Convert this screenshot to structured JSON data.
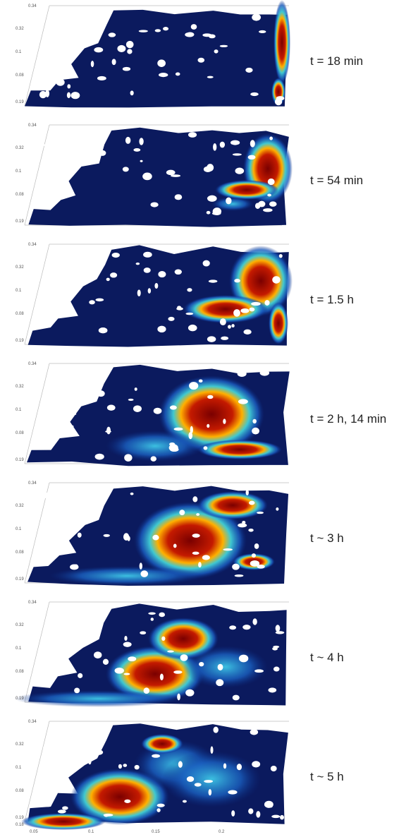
{
  "panels": [
    {
      "label": "t = 18 min",
      "ticks": [
        "0.34",
        "0.32",
        "0.1",
        "0.08",
        "0.19"
      ]
    },
    {
      "label": "t = 54 min",
      "ticks": [
        "0.34",
        "0.32",
        "0.1",
        "0.08",
        "0.19"
      ]
    },
    {
      "label": "t = 1.5 h",
      "ticks": [
        "0.34",
        "0.32",
        "0.1",
        "0.08",
        "0.19"
      ]
    },
    {
      "label": "t = 2 h, 14 min",
      "ticks": [
        "0.34",
        "0.32",
        "0.1",
        "0.08",
        "0.19"
      ]
    },
    {
      "label": "t ~ 3 h",
      "ticks": [
        "0.34",
        "0.32",
        "0.1",
        "0.08",
        "0.19"
      ]
    },
    {
      "label": "t ~ 4 h",
      "ticks": [
        "0.34",
        "0.32",
        "0.1",
        "0.08",
        "0.19"
      ]
    },
    {
      "label": "t ~ 5 h",
      "ticks": [
        "0.34",
        "0.32",
        "0.1",
        "0.08",
        "0.19",
        "0.18"
      ]
    }
  ],
  "x_axis": {
    "ticks": [
      "0.05",
      "0.1",
      "0.15",
      "0.2"
    ]
  }
}
